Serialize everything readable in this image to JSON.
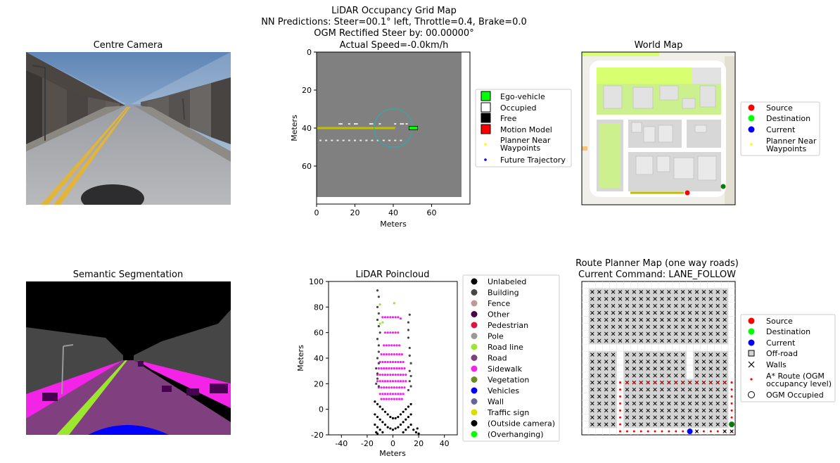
{
  "figure": {
    "suptitle": [
      "LiDAR Occupancy Grid Map",
      "NN Predictions: Steer=00.1° left, Throttle=0.4, Brake=0.0",
      "OGM Rectified Steer by: 00.00000°",
      "Actual Speed=-0.0km/h"
    ]
  },
  "panels": {
    "centre_camera": {
      "title": "Centre Camera"
    },
    "semantic": {
      "title": "Semantic Segmentation"
    },
    "world_map": {
      "title": "World Map"
    },
    "route_planner": {
      "title": "Route Planner Map (one way roads)",
      "subtitle": "Current Command: LANE_FOLLOW"
    }
  },
  "colors": {
    "ego": "#00ff00",
    "occupied": "#ffffff",
    "free": "#000000",
    "motion": "#ff0000",
    "planner": "#ffff00",
    "trajectory": "#0000ff",
    "grid_bg": "#808080",
    "source": "#ff0000",
    "destination": "#00ff00",
    "current": "#0000ff"
  },
  "legends": {
    "ogm": [
      "Ego-vehicle",
      "Occupied",
      "Free",
      "Motion Model",
      "Planner Near\nWaypoints",
      "Future Trajectory"
    ],
    "world": [
      "Source",
      "Destination",
      "Current",
      "Planner Near\nWaypoints"
    ],
    "lidar": [
      {
        "label": "Unlabeled",
        "color": "#000000"
      },
      {
        "label": "Building",
        "color": "#464646"
      },
      {
        "label": "Fence",
        "color": "#be9999"
      },
      {
        "label": "Other",
        "color": "#480050"
      },
      {
        "label": "Pedestrian",
        "color": "#dc143c"
      },
      {
        "label": "Pole",
        "color": "#999999"
      },
      {
        "label": "Road line",
        "color": "#9de62f"
      },
      {
        "label": "Road",
        "color": "#80407f"
      },
      {
        "label": "Sidewalk",
        "color": "#f423e8"
      },
      {
        "label": "Vegetation",
        "color": "#6b8e23"
      },
      {
        "label": "Vehicles",
        "color": "#0000ff"
      },
      {
        "label": "Wall",
        "color": "#66669c"
      },
      {
        "label": "Traffic sign",
        "color": "#dcdc00"
      },
      {
        "label": "(Outside camera)",
        "color": "#000000"
      },
      {
        "label": "(Overhanging)",
        "color": "#00ff00"
      }
    ],
    "route": [
      "Source",
      "Destination",
      "Current",
      "Off-road",
      "Walls",
      "A* Route (OGM\noccupancy level)",
      "OGM Occupied"
    ]
  },
  "chart_data": [
    {
      "type": "heatmap",
      "id": "ogm",
      "xlabel": "Meters",
      "ylabel": "Meters",
      "xlim": [
        0,
        80
      ],
      "ylim": [
        80,
        0
      ],
      "xticks": [
        0,
        20,
        40,
        60
      ],
      "yticks": [
        0,
        20,
        40,
        60
      ],
      "ego": {
        "x": 50.5,
        "y": 40
      },
      "planner_waypoints": {
        "x_start": 0,
        "x_end": 41,
        "y": 40
      },
      "occupied_points": [
        [
          12,
          37.8
        ],
        [
          13,
          37.8
        ],
        [
          17,
          37.8
        ],
        [
          20,
          37.8
        ],
        [
          21,
          37.8
        ],
        [
          28,
          37.8
        ],
        [
          29,
          37.8
        ],
        [
          33,
          37.8
        ],
        [
          41,
          37.8
        ],
        [
          44,
          37.8
        ],
        [
          45,
          37.8
        ],
        [
          47,
          37.8
        ],
        [
          2,
          46.5
        ],
        [
          5,
          46.5
        ],
        [
          8,
          46.5
        ],
        [
          11,
          46.5
        ],
        [
          14,
          46.5
        ],
        [
          17,
          46.5
        ],
        [
          20,
          46.5
        ],
        [
          23,
          46.5
        ],
        [
          26,
          46.5
        ],
        [
          29,
          46.5
        ],
        [
          32,
          46.5
        ],
        [
          35,
          46.5
        ],
        [
          38,
          46.5
        ],
        [
          41,
          46.5
        ],
        [
          44,
          46.5
        ]
      ],
      "motion_circle": {
        "cx": 40,
        "cy": 40,
        "r": 10
      }
    },
    {
      "type": "scatter",
      "id": "lidar",
      "title": "LiDAR Poincloud",
      "xlabel": "Meters",
      "ylabel": "Meters",
      "xlim": [
        -50,
        50
      ],
      "ylim": [
        -20,
        100
      ],
      "xticks": [
        -40,
        -20,
        0,
        20,
        40
      ],
      "yticks": [
        -20,
        0,
        20,
        40,
        60,
        80,
        100
      ],
      "series": [
        {
          "name": "Sidewalk",
          "color": "#f423e8",
          "points": [
            [
              -8,
              72
            ],
            [
              -6,
              72
            ],
            [
              -4,
              72
            ],
            [
              -2,
              72
            ],
            [
              0,
              72
            ],
            [
              2,
              72
            ],
            [
              4,
              72
            ],
            [
              6,
              71
            ],
            [
              -6,
              60
            ],
            [
              -4,
              60
            ],
            [
              -2,
              60
            ],
            [
              0,
              60
            ],
            [
              2,
              60
            ],
            [
              4,
              60
            ],
            [
              -7,
              50
            ],
            [
              -5,
              50
            ],
            [
              -3,
              50
            ],
            [
              -1,
              50
            ],
            [
              1,
              50
            ],
            [
              3,
              50
            ],
            [
              5,
              50
            ],
            [
              -9,
              43
            ],
            [
              -7,
              43
            ],
            [
              -5,
              43
            ],
            [
              -3,
              43
            ],
            [
              -1,
              43
            ],
            [
              1,
              43
            ],
            [
              3,
              43
            ],
            [
              5,
              43
            ],
            [
              7,
              43
            ],
            [
              -10,
              37
            ],
            [
              -8,
              37
            ],
            [
              -6,
              37
            ],
            [
              -4,
              37
            ],
            [
              -2,
              37
            ],
            [
              0,
              37
            ],
            [
              2,
              37
            ],
            [
              4,
              37
            ],
            [
              6,
              37
            ],
            [
              8,
              37
            ],
            [
              -11,
              32
            ],
            [
              -9,
              32
            ],
            [
              -7,
              32
            ],
            [
              -5,
              32
            ],
            [
              -3,
              32
            ],
            [
              -1,
              32
            ],
            [
              1,
              32
            ],
            [
              3,
              32
            ],
            [
              5,
              32
            ],
            [
              7,
              32
            ],
            [
              9,
              32
            ],
            [
              -12,
              27
            ],
            [
              -10,
              27
            ],
            [
              -8,
              27
            ],
            [
              -6,
              27
            ],
            [
              -4,
              27
            ],
            [
              -2,
              27
            ],
            [
              0,
              27
            ],
            [
              2,
              27
            ],
            [
              4,
              27
            ],
            [
              6,
              27
            ],
            [
              8,
              27
            ],
            [
              10,
              27
            ],
            [
              -12,
              22
            ],
            [
              -10,
              22
            ],
            [
              -8,
              22
            ],
            [
              -6,
              22
            ],
            [
              -4,
              22
            ],
            [
              -2,
              22
            ],
            [
              0,
              22
            ],
            [
              2,
              22
            ],
            [
              4,
              22
            ],
            [
              6,
              22
            ],
            [
              8,
              22
            ],
            [
              10,
              22
            ],
            [
              -11,
              17
            ],
            [
              -9,
              17
            ],
            [
              -7,
              17
            ],
            [
              -5,
              17
            ],
            [
              -3,
              17
            ],
            [
              -1,
              17
            ],
            [
              1,
              17
            ],
            [
              3,
              17
            ],
            [
              5,
              17
            ],
            [
              7,
              17
            ],
            [
              9,
              17
            ],
            [
              -10,
              12
            ],
            [
              -8,
              12
            ],
            [
              -6,
              12
            ],
            [
              -4,
              12
            ],
            [
              -2,
              12
            ],
            [
              0,
              12
            ],
            [
              2,
              12
            ],
            [
              4,
              12
            ],
            [
              6,
              12
            ],
            [
              8,
              12
            ],
            [
              -9,
              8
            ],
            [
              -7,
              8
            ],
            [
              -5,
              8
            ],
            [
              -3,
              8
            ],
            [
              -1,
              8
            ],
            [
              1,
              8
            ],
            [
              3,
              8
            ],
            [
              5,
              8
            ],
            [
              7,
              8
            ]
          ]
        },
        {
          "name": "Building",
          "color": "#464646",
          "points": [
            [
              -12,
              93
            ],
            [
              -11,
              88
            ],
            [
              -12,
              80
            ],
            [
              -11,
              75
            ],
            [
              -12,
              70
            ],
            [
              -11,
              65
            ],
            [
              -10,
              60
            ],
            [
              -12,
              55
            ],
            [
              -11,
              50
            ],
            [
              -11,
              45
            ],
            [
              -12,
              40
            ],
            [
              -11,
              36
            ],
            [
              -13,
              32
            ],
            [
              -12,
              28
            ],
            [
              -12,
              24
            ],
            [
              -13,
              20
            ],
            [
              -11,
              18
            ],
            [
              13,
              74
            ],
            [
              12,
              68
            ],
            [
              12,
              62
            ],
            [
              12,
              56
            ],
            [
              13,
              48
            ],
            [
              13,
              42
            ],
            [
              14,
              36
            ],
            [
              13,
              30
            ],
            [
              14,
              26
            ],
            [
              13,
              22
            ],
            [
              14,
              18
            ],
            [
              12,
              15
            ]
          ]
        },
        {
          "name": "Road line",
          "color": "#9de62f",
          "points": [
            [
              -10,
              82
            ],
            [
              1,
              83
            ],
            [
              -10,
              67
            ],
            [
              -8,
              68
            ]
          ]
        },
        {
          "name": "Unlabeled",
          "color": "#000000",
          "points": [
            [
              -14,
              6
            ],
            [
              -12,
              4
            ],
            [
              -10,
              2
            ],
            [
              -8,
              0
            ],
            [
              -6,
              -2
            ],
            [
              -4,
              -4
            ],
            [
              -2,
              -6
            ],
            [
              0,
              -7
            ],
            [
              2,
              -7
            ],
            [
              4,
              -6
            ],
            [
              6,
              -4
            ],
            [
              8,
              -2
            ],
            [
              10,
              0
            ],
            [
              12,
              2
            ],
            [
              14,
              4
            ],
            [
              -14,
              -4
            ],
            [
              -12,
              -6
            ],
            [
              -10,
              -8
            ],
            [
              -8,
              -10
            ],
            [
              -6,
              -12
            ],
            [
              -4,
              -14
            ],
            [
              -2,
              -15
            ],
            [
              0,
              -16
            ],
            [
              2,
              -15
            ],
            [
              4,
              -14
            ],
            [
              6,
              -12
            ],
            [
              8,
              -10
            ],
            [
              10,
              -8
            ],
            [
              12,
              -6
            ],
            [
              14,
              -4
            ],
            [
              -14,
              -12
            ],
            [
              -12,
              -14
            ],
            [
              -10,
              -16
            ],
            [
              -8,
              -18
            ],
            [
              8,
              -18
            ],
            [
              10,
              -16
            ],
            [
              12,
              -14
            ],
            [
              14,
              -12
            ],
            [
              16,
              -16
            ],
            [
              18,
              -18
            ],
            [
              19,
              -15
            ],
            [
              20,
              -19
            ],
            [
              -13,
              -18
            ],
            [
              -12,
              -19
            ]
          ]
        }
      ]
    },
    {
      "type": "heatmap",
      "id": "route_grid",
      "cols": 22,
      "rows": 22,
      "blocks": [
        {
          "c0": 1,
          "c1": 20,
          "r0": 1,
          "r1": 8
        },
        {
          "c0": 1,
          "c1": 4,
          "r0": 10,
          "r1": 20
        },
        {
          "c0": 6,
          "c1": 14,
          "r0": 10,
          "r1": 13
        },
        {
          "c0": 16,
          "c1": 20,
          "r0": 10,
          "r1": 13
        },
        {
          "c0": 6,
          "c1": 20,
          "r0": 14,
          "r1": 20
        }
      ],
      "astar_route": {
        "col_start": 5,
        "col_end": 21,
        "row_top": 14,
        "row_bottom": 21
      },
      "source_cell": [
        15,
        21
      ],
      "current_cell": [
        15,
        21
      ],
      "destination_cell": [
        21,
        20
      ]
    }
  ]
}
